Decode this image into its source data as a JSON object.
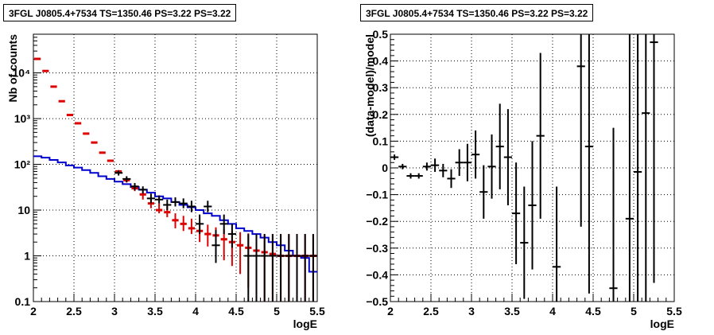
{
  "chart_data": [
    {
      "type": "scatter",
      "title": "3FGL J0805.4+7534 TS=1350.46 PS=3.22 PS=3.22",
      "xlabel": "logE",
      "ylabel": "Nb of counts",
      "xlim": [
        2,
        5.5
      ],
      "ylim": [
        0.1,
        70000
      ],
      "yscale": "log",
      "grid": true,
      "x_ticks": [
        "2",
        "2.5",
        "3",
        "3.5",
        "4",
        "4.5",
        "5",
        "5.5"
      ],
      "y_ticks": [
        "0.1",
        "1",
        "10",
        "10²",
        "10³",
        "10⁴"
      ],
      "colors": {
        "data": "#000000",
        "model": "#dd0000",
        "background": "#0000cc"
      },
      "series": [
        {
          "x": [
            2.05,
            2.15,
            2.25,
            2.35,
            2.45,
            2.55,
            2.65,
            2.75,
            2.85,
            2.95,
            3.05,
            3.15,
            3.25,
            3.35,
            3.45,
            3.55,
            3.65,
            3.75,
            3.85,
            3.95,
            4.05,
            4.15,
            4.25,
            4.35,
            4.45,
            4.55,
            4.65,
            4.75,
            4.85,
            4.95,
            5.05,
            5.15,
            5.25,
            5.35,
            5.45
          ],
          "y": [
            20000,
            11000,
            5000,
            2400,
            1200,
            780,
            460,
            300,
            180,
            115,
            70,
            45,
            30,
            20,
            14,
            11,
            9,
            6,
            5,
            4.5,
            3.5,
            2.8,
            2.2,
            1.8,
            1.5,
            1.3,
            1.1,
            1,
            1,
            1,
            1,
            1,
            1,
            1,
            1
          ],
          "y_err_low": [
            0,
            0,
            0,
            0,
            0,
            0,
            0,
            0,
            0,
            0,
            5,
            5,
            4,
            3,
            3,
            2.5,
            2,
            2,
            1.5,
            1.5,
            1.5,
            1.2,
            1,
            1,
            0.9,
            0.9,
            0.9,
            0.9,
            0.9,
            0.9,
            0.9,
            0.9,
            0.9,
            0.9,
            0.9
          ],
          "y_err_high": [
            0,
            0,
            0,
            0,
            0,
            0,
            0,
            0,
            0,
            0,
            5,
            5,
            4,
            4,
            3,
            3,
            3,
            2.5,
            2.5,
            2,
            2,
            2,
            2,
            2,
            2,
            2,
            2,
            2,
            2,
            2,
            2,
            2,
            2,
            2,
            2
          ]
        },
        {
          "x": [
            2.05,
            2.15,
            2.25,
            2.35,
            2.45,
            2.55,
            2.65,
            2.75,
            2.85,
            2.95,
            3.05,
            3.15,
            3.25,
            3.35,
            3.45,
            3.55,
            3.65,
            3.75,
            3.85,
            3.95,
            4.05,
            4.15,
            4.25,
            4.35,
            4.45,
            4.55,
            4.65,
            4.75,
            4.85,
            4.95,
            5.05,
            5.15,
            5.25,
            5.35,
            5.45
          ],
          "y": [
            150,
            140,
            125,
            110,
            95,
            85,
            75,
            65,
            55,
            48,
            42,
            37,
            32,
            28,
            24,
            20,
            18,
            15,
            13,
            11.5,
            10,
            8.5,
            7.5,
            6,
            5,
            4,
            3.5,
            3,
            2.5,
            2,
            1.7,
            1.3,
            1,
            0.9,
            0.45
          ]
        },
        {
          "x": [
            2.05,
            2.15,
            2.25,
            2.35,
            2.45,
            2.55,
            2.65,
            2.75,
            2.85,
            2.95,
            3.05,
            3.15,
            3.25,
            3.35,
            3.45,
            3.55,
            3.65,
            3.75,
            3.85,
            3.95,
            4.05,
            4.15,
            4.25,
            4.35,
            4.45,
            4.55,
            4.65,
            4.75,
            4.85,
            4.95,
            5.05,
            5.15,
            5.25,
            5.35,
            5.45
          ],
          "y": [
            20200,
            11000,
            5000,
            2400,
            1200,
            790,
            470,
            300,
            180,
            120,
            70,
            45,
            30,
            22,
            14,
            10,
            9,
            6,
            5,
            4,
            3.5,
            3,
            2.8,
            2.3,
            2,
            1.7,
            1.5,
            1.3,
            1.2,
            1.1,
            1,
            1,
            1,
            1,
            1
          ]
        },
        {
          "x": [
            3.05,
            3.15,
            3.25,
            3.35,
            3.45,
            3.55,
            3.65,
            3.75,
            3.85,
            3.95,
            4.05,
            4.15,
            4.25,
            4.35,
            4.45,
            4.65,
            4.75,
            4.85,
            4.95,
            5.05,
            5.15,
            5.25,
            5.35,
            5.45
          ],
          "y": [
            65,
            48,
            33,
            28,
            18,
            17,
            13,
            15,
            14,
            12,
            5,
            12,
            1.7,
            5,
            3,
            1,
            1,
            1,
            1,
            1,
            1,
            1,
            1,
            1
          ],
          "y_err_low": [
            8,
            7,
            6,
            5,
            4,
            3,
            3,
            3,
            3,
            3,
            2,
            3,
            1,
            2,
            1.5,
            0.9,
            0.9,
            0.9,
            0.9,
            0.9,
            0.9,
            0.9,
            0.9,
            0.9
          ],
          "y_err_high": [
            8,
            7,
            6,
            5,
            5,
            4,
            4,
            4,
            4,
            4,
            3,
            4,
            2,
            3,
            2,
            2,
            2,
            2,
            2,
            2,
            2,
            2,
            2,
            2
          ]
        }
      ]
    },
    {
      "type": "scatter",
      "title": "3FGL J0805.4+7534 TS=1350.46 PS=3.22 PS=3.22",
      "xlabel": "logE",
      "ylabel": "(data-model)/model",
      "xlim": [
        2,
        5.5
      ],
      "ylim": [
        -0.5,
        0.5
      ],
      "grid": true,
      "x_ticks": [
        "2",
        "2.5",
        "3",
        "3.5",
        "4",
        "4.5",
        "5",
        "5.5"
      ],
      "y_ticks": [
        "−0.5",
        "−0.4",
        "−0.3",
        "−0.2",
        "−0.1",
        "0",
        "0.1",
        "0.2",
        "0.3",
        "0.4",
        "0.5"
      ],
      "series": [
        {
          "x": [
            2.05,
            2.15,
            2.25,
            2.35,
            2.45,
            2.55,
            2.65,
            2.75,
            2.85,
            2.95,
            3.05,
            3.15,
            3.25,
            3.35,
            3.45,
            3.55,
            3.65,
            3.75,
            3.85,
            4.05,
            4.35,
            4.45,
            4.75,
            4.95,
            5.05,
            5.15,
            5.25
          ],
          "y": [
            0.04,
            0.005,
            -0.03,
            -0.03,
            0.005,
            0.01,
            -0.01,
            -0.04,
            0.02,
            0.02,
            0.05,
            -0.09,
            0.005,
            0.08,
            0.04,
            -0.17,
            -0.28,
            -0.14,
            0.12,
            -0.37,
            0.38,
            0.08,
            -0.45,
            -0.19,
            -0.015,
            0.205,
            0.47
          ],
          "y_err": [
            0.01,
            0.01,
            0.01,
            0.01,
            0.015,
            0.025,
            0.025,
            0.035,
            0.05,
            0.07,
            0.09,
            0.1,
            0.12,
            0.16,
            0.18,
            0.19,
            0.21,
            0.24,
            0.31,
            0.3,
            0.6,
            0.55,
            0.6,
            0.9,
            0.9,
            0.9,
            0.9
          ]
        }
      ]
    }
  ]
}
